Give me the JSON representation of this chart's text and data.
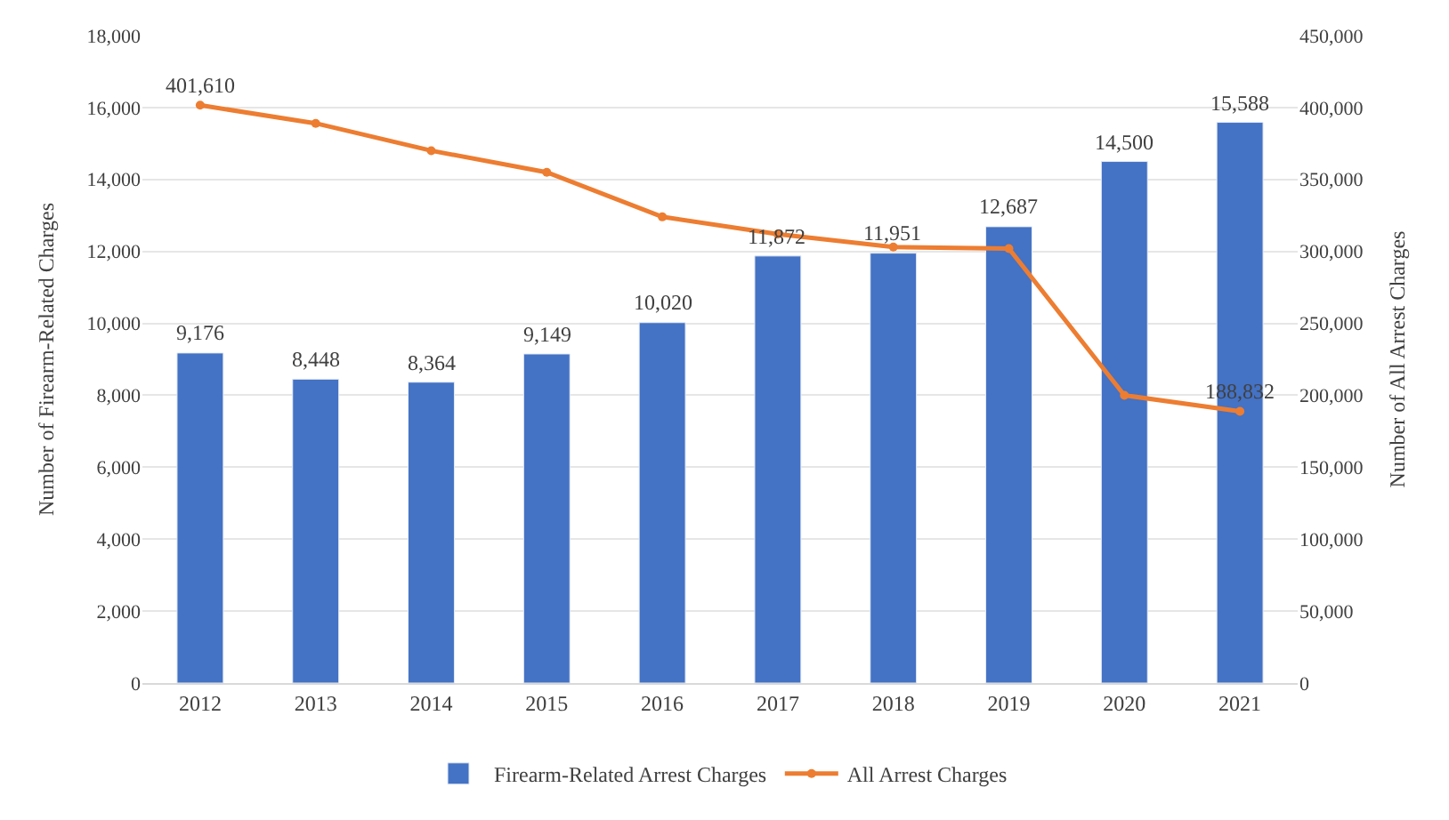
{
  "chart_data": {
    "type": "bar",
    "categories": [
      "2012",
      "2013",
      "2014",
      "2015",
      "2016",
      "2017",
      "2018",
      "2019",
      "2020",
      "2021"
    ],
    "ylabel": "Number of Firearm-Related Charges",
    "y2label": "Number of All Arrest Charges",
    "ylim": [
      0,
      18000
    ],
    "yticks": [
      {
        "value": 0,
        "label": "0"
      },
      {
        "value": 2000,
        "label": "2,000"
      },
      {
        "value": 4000,
        "label": "4,000"
      },
      {
        "value": 6000,
        "label": "6,000"
      },
      {
        "value": 8000,
        "label": "8,000"
      },
      {
        "value": 10000,
        "label": "10,000"
      },
      {
        "value": 12000,
        "label": "12,000"
      },
      {
        "value": 14000,
        "label": "14,000"
      },
      {
        "value": 16000,
        "label": "16,000"
      },
      {
        "value": 18000,
        "label": "18,000"
      }
    ],
    "y2lim": [
      0,
      450000
    ],
    "y2ticks": [
      {
        "value": 0,
        "label": "0"
      },
      {
        "value": 50000,
        "label": "50,000"
      },
      {
        "value": 100000,
        "label": "100,000"
      },
      {
        "value": 150000,
        "label": "150,000"
      },
      {
        "value": 200000,
        "label": "200,000"
      },
      {
        "value": 250000,
        "label": "250,000"
      },
      {
        "value": 300000,
        "label": "300,000"
      },
      {
        "value": 350000,
        "label": "350,000"
      },
      {
        "value": 400000,
        "label": "400,000"
      },
      {
        "value": 450000,
        "label": "450,000"
      }
    ],
    "grid": "y",
    "legend": "bottom",
    "series": [
      {
        "name": "Firearm-Related Arrest Charges",
        "color": "#4472c4",
        "values": [
          9176,
          8448,
          8364,
          9149,
          10020,
          11872,
          11951,
          12687,
          14500,
          15588
        ],
        "value_labels": [
          "9,176",
          "8,448",
          "8,364",
          "9,149",
          "10,020",
          "11,872",
          "11,951",
          "12,687",
          "14,500",
          "15,588"
        ]
      },
      {
        "name": "All Arrest Charges",
        "type": "line",
        "axis": "y2",
        "color": "#ed7d31",
        "marker": "circle",
        "line_style": "solid",
        "values": [
          401610,
          389000,
          370000,
          355000,
          324000,
          312000,
          303000,
          302000,
          200000,
          188832
        ],
        "value_labels": [
          "401,610",
          null,
          null,
          null,
          null,
          null,
          null,
          null,
          null,
          "188,832"
        ]
      }
    ]
  }
}
